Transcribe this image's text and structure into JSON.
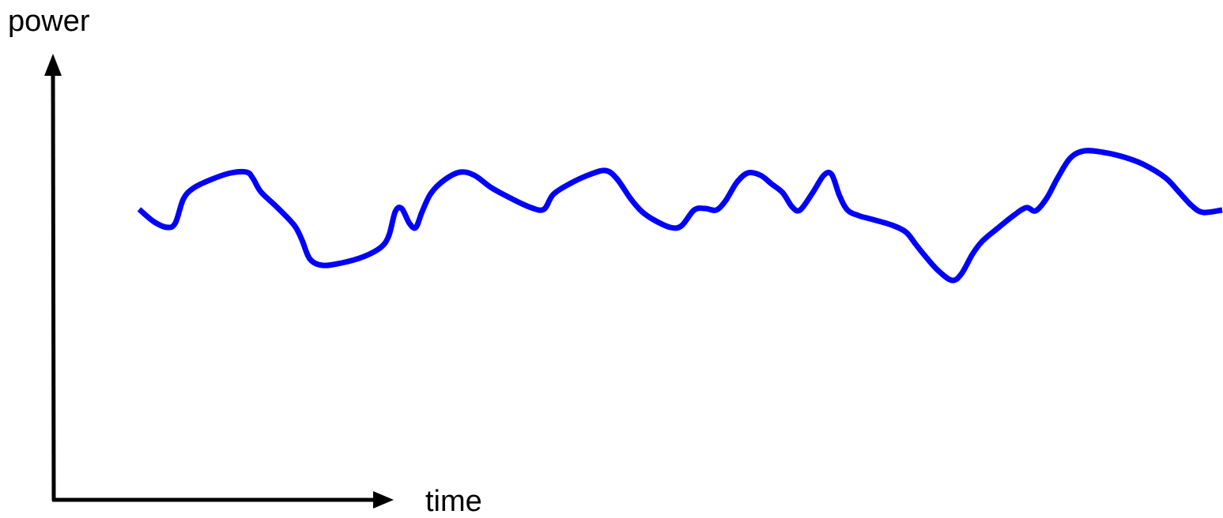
{
  "diagram": {
    "y_axis_label": "power",
    "x_axis_label": "time",
    "colors": {
      "axes": "#000000",
      "signal": "#0000ff"
    }
  }
}
